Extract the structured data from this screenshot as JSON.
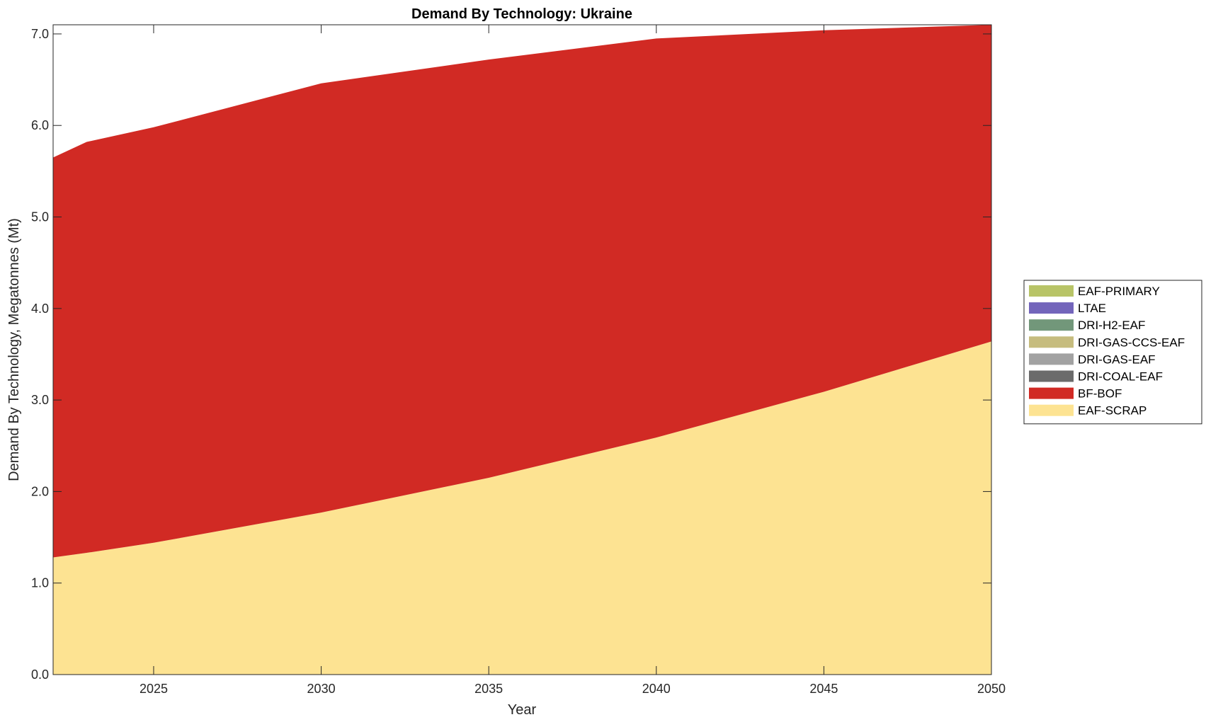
{
  "chart_data": {
    "type": "area",
    "stacked": true,
    "title": "Demand By Technology: Ukraine",
    "xlabel": "Year",
    "ylabel": "Demand By Technology, Megatonnes (Mt)",
    "xlim": [
      2022,
      2050
    ],
    "ylim": [
      0,
      7.1
    ],
    "x_ticks": [
      2025,
      2030,
      2035,
      2040,
      2045,
      2050
    ],
    "x_tick_labels": [
      "2025",
      "2030",
      "2035",
      "2040",
      "2045",
      "2050"
    ],
    "y_ticks": [
      0,
      1,
      2,
      3,
      4,
      5,
      6,
      7
    ],
    "y_tick_labels": [
      "0.0",
      "1.0",
      "2.0",
      "3.0",
      "4.0",
      "5.0",
      "6.0",
      "7.0"
    ],
    "grid": false,
    "legend_position": "right",
    "x": [
      2022,
      2023,
      2025,
      2030,
      2035,
      2040,
      2045,
      2050
    ],
    "series": [
      {
        "name": "EAF-SCRAP",
        "color": "#FDE392",
        "values": [
          1.28,
          1.33,
          1.44,
          1.77,
          2.15,
          2.59,
          3.09,
          3.64
        ]
      },
      {
        "name": "BF-BOF",
        "color": "#D12A24",
        "values": [
          4.37,
          4.49,
          4.54,
          4.69,
          4.57,
          4.36,
          3.95,
          3.46
        ]
      },
      {
        "name": "DRI-COAL-EAF",
        "color": "#6B6B6B",
        "values": [
          0,
          0,
          0,
          0,
          0,
          0,
          0,
          0
        ]
      },
      {
        "name": "DRI-GAS-EAF",
        "color": "#A2A2A2",
        "values": [
          0,
          0,
          0,
          0,
          0,
          0,
          0,
          0
        ]
      },
      {
        "name": "DRI-GAS-CCS-EAF",
        "color": "#C6BC7E",
        "values": [
          0,
          0,
          0,
          0,
          0,
          0,
          0,
          0
        ]
      },
      {
        "name": "DRI-H2-EAF",
        "color": "#72977A",
        "values": [
          0,
          0,
          0,
          0,
          0,
          0,
          0,
          0
        ]
      },
      {
        "name": "LTAE",
        "color": "#7365BB",
        "values": [
          0,
          0,
          0,
          0,
          0,
          0,
          0,
          0
        ]
      },
      {
        "name": "EAF-PRIMARY",
        "color": "#B8C467",
        "values": [
          0,
          0,
          0,
          0,
          0,
          0,
          0,
          0
        ]
      }
    ],
    "legend_order": [
      "EAF-PRIMARY",
      "LTAE",
      "DRI-H2-EAF",
      "DRI-GAS-CCS-EAF",
      "DRI-GAS-EAF",
      "DRI-COAL-EAF",
      "BF-BOF",
      "EAF-SCRAP"
    ]
  }
}
